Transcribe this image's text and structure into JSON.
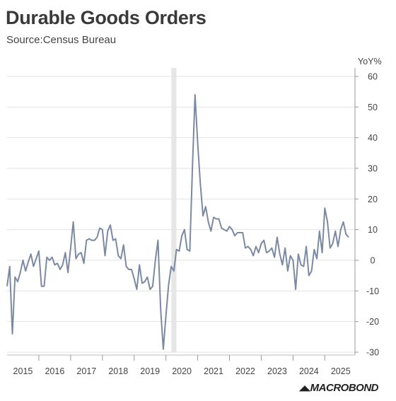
{
  "header": {
    "title": "Durable Goods Orders",
    "subtitle": "Source:Census Bureau"
  },
  "logo": "MACROBOND",
  "colors": {
    "line": "#7b8aa3",
    "grid": "#e3e3e3",
    "recession_band": "#e6e6e6"
  },
  "chart_data": {
    "type": "line",
    "title": "Durable Goods Orders",
    "subtitle": "Source:Census Bureau",
    "ylabel": "YoY%",
    "ylim": [
      -30,
      60
    ],
    "yticks": [
      -30,
      -20,
      -10,
      0,
      10,
      20,
      30,
      40,
      50,
      60
    ],
    "xlim": [
      2015.0,
      2025.95
    ],
    "xticks": [
      {
        "x": 2015.5,
        "label": "2015"
      },
      {
        "x": 2016.5,
        "label": "2016"
      },
      {
        "x": 2017.5,
        "label": "2017"
      },
      {
        "x": 2018.5,
        "label": "2018"
      },
      {
        "x": 2019.5,
        "label": "2019"
      },
      {
        "x": 2020.5,
        "label": "2020"
      },
      {
        "x": 2021.5,
        "label": "2021"
      },
      {
        "x": 2022.5,
        "label": "2022"
      },
      {
        "x": 2023.5,
        "label": "2023"
      },
      {
        "x": 2024.5,
        "label": "2024"
      },
      {
        "x": 2025.5,
        "label": "2025"
      }
    ],
    "grid": true,
    "shaded_period": {
      "start": 2020.17,
      "end": 2020.33
    },
    "series": [
      {
        "start": 2015.0,
        "step": 0.0833333,
        "values": [
          -8.5,
          -2,
          -24,
          -5.5,
          -7,
          -4,
          0,
          -3.5,
          -0.5,
          2,
          -2,
          0.5,
          3,
          -8.5,
          -8.5,
          1,
          0,
          1,
          -1.5,
          -1,
          -3,
          -1.5,
          2.5,
          -4,
          4,
          12.5,
          0.5,
          2,
          2.5,
          -1,
          6.5,
          7,
          6.5,
          6.5,
          7.5,
          10.5,
          10,
          1.5,
          9.5,
          11.5,
          6.5,
          7,
          1.5,
          0.5,
          5,
          -2,
          -3,
          -3,
          -6,
          -9.5,
          -1.5,
          -7.5,
          -7,
          -5.5,
          -9.5,
          -8.5,
          0,
          6.5,
          -16,
          -29,
          -18,
          -8,
          -2,
          -3.5,
          3.5,
          3,
          8,
          10,
          3.5,
          3,
          30,
          54,
          38,
          25,
          14.5,
          17.5,
          12.5,
          9.5,
          14,
          13.5,
          13.5,
          10.5,
          10,
          9.5,
          11,
          10,
          8,
          9,
          9,
          9,
          4,
          4.5,
          3.5,
          1.5,
          4.5,
          2.5,
          5.5,
          6.5,
          2.5,
          3,
          4,
          1,
          7.5,
          2,
          -1.5,
          4,
          -3.5,
          1.5,
          0,
          -9.5,
          2,
          -1.5,
          -2,
          4.5,
          -5,
          -3.5,
          3.5,
          0.5,
          9.5,
          2.5,
          17,
          12.5,
          4,
          5.5,
          9.5,
          4.5,
          10,
          12.5,
          8.5,
          7.5
        ]
      }
    ]
  }
}
